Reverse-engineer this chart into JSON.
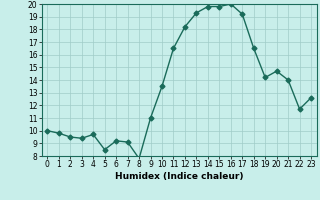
{
  "x": [
    0,
    1,
    2,
    3,
    4,
    5,
    6,
    7,
    8,
    9,
    10,
    11,
    12,
    13,
    14,
    15,
    16,
    17,
    18,
    19,
    20,
    21,
    22,
    23
  ],
  "y": [
    10.0,
    9.8,
    9.5,
    9.4,
    9.7,
    8.5,
    9.2,
    9.1,
    7.8,
    11.0,
    13.5,
    16.5,
    18.2,
    19.3,
    19.8,
    19.8,
    20.0,
    19.2,
    16.5,
    14.2,
    14.7,
    14.0,
    11.7,
    12.6
  ],
  "line_color": "#1a6b5a",
  "marker": "D",
  "marker_size": 2.5,
  "bg_color": "#c8eeea",
  "grid_color": "#a0ccc8",
  "xlabel": "Humidex (Indice chaleur)",
  "ylim": [
    8,
    20
  ],
  "xlim": [
    -0.5,
    23.5
  ],
  "yticks": [
    8,
    9,
    10,
    11,
    12,
    13,
    14,
    15,
    16,
    17,
    18,
    19,
    20
  ],
  "xticks": [
    0,
    1,
    2,
    3,
    4,
    5,
    6,
    7,
    8,
    9,
    10,
    11,
    12,
    13,
    14,
    15,
    16,
    17,
    18,
    19,
    20,
    21,
    22,
    23
  ],
  "xlabel_fontsize": 6.5,
  "tick_fontsize": 5.5,
  "line_width": 1.0
}
